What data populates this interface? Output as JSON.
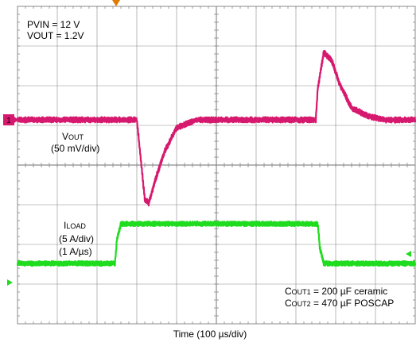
{
  "chart_data": {
    "type": "line",
    "title": "",
    "xlabel": "Time (100 µs/div)",
    "ylabel": "",
    "grid": true,
    "divisions": {
      "x": 10,
      "y": 8
    },
    "xlim": [
      0,
      10
    ],
    "annotations": {
      "pvin": "PVIN = 12 V",
      "vout": "VOUT = 1.2V",
      "vout_label_main": "V",
      "vout_label_sub": "OUT",
      "vout_scale": "(50 mV/div)",
      "iload_label_main": "I",
      "iload_label_sub": "LOAD",
      "iload_scale": "(5 A/div)",
      "iload_slew": "(1 A/µs)",
      "cout1_main": "C",
      "cout1_sub": "OUT1",
      "cout1_value": " = 200 µF ceramic",
      "cout2_main": "C",
      "cout2_sub": "OUT2",
      "cout2_value": " = 470 µF POSCAP",
      "channel_marker": "1"
    },
    "series": [
      {
        "color": "#d6196e",
        "unit": "mV",
        "x": [
          0,
          3.0,
          3.1,
          3.2,
          3.3,
          3.5,
          3.7,
          4.0,
          4.5,
          5.0,
          6.0,
          7.0,
          7.5,
          7.55,
          7.7,
          7.9,
          8.1,
          8.4,
          8.8,
          9.2,
          10
        ],
        "values": [
          0,
          0,
          -50,
          -100,
          -105,
          -70,
          -40,
          -10,
          0,
          0,
          0,
          0,
          0,
          40,
          85,
          75,
          45,
          15,
          5,
          0,
          0
        ]
      },
      {
        "color": "#1fdc1f",
        "unit": "A",
        "x": [
          0,
          2.45,
          2.5,
          2.6,
          7.55,
          7.6,
          7.7,
          10
        ],
        "values": [
          0,
          0,
          3,
          5,
          5,
          2,
          0,
          0
        ]
      }
    ]
  },
  "colors": {
    "vout": "#d6196e",
    "iload": "#1fdc1f",
    "grid": "#8a8a8a",
    "trigger": "#e07a00"
  },
  "icons": {
    "trigger_marker": "down-triangle-marker",
    "level_marker": "left-arrow-marker"
  }
}
